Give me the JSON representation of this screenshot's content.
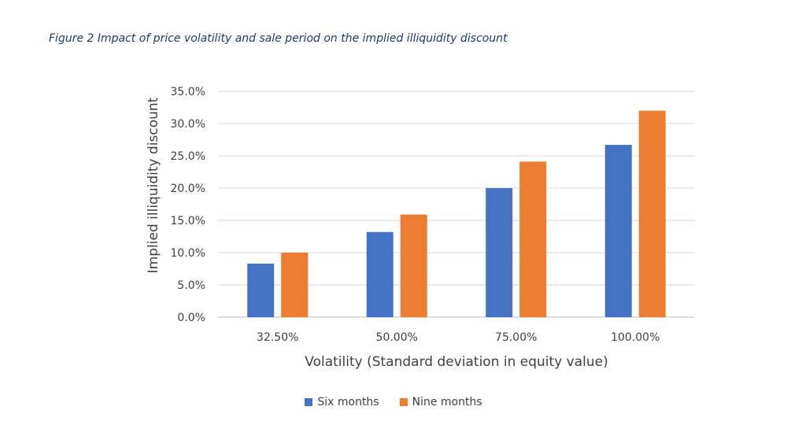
{
  "caption": "Figure 2 Impact of price volatility and sale period on the implied illiquidity discount",
  "chart_data": {
    "type": "bar",
    "title": "",
    "xlabel": "Volatility (Standard deviation in equity value)",
    "ylabel": "Implied illiquidity discount",
    "categories": [
      "32.50%",
      "50.00%",
      "75.00%",
      "100.00%"
    ],
    "y_ticks": [
      "0.0%",
      "5.0%",
      "10.0%",
      "15.0%",
      "20.0%",
      "25.0%",
      "30.0%",
      "35.0%"
    ],
    "ylim": [
      0,
      35
    ],
    "grid": true,
    "legend_position": "bottom",
    "series": [
      {
        "name": "Six months",
        "color": "#4472c4",
        "values": [
          8.3,
          13.2,
          20.0,
          26.7
        ]
      },
      {
        "name": "Nine months",
        "color": "#ed7d31",
        "values": [
          10.0,
          15.9,
          24.1,
          32.0
        ]
      }
    ]
  }
}
